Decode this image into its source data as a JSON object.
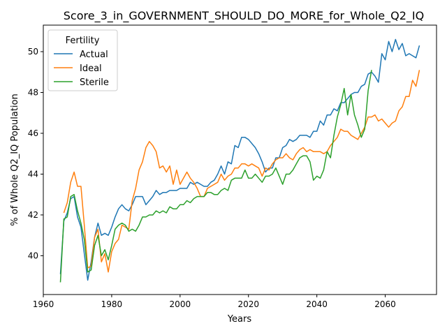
{
  "chart_data": {
    "type": "line",
    "title": "Score_3_in_GOVERNMENT_SHOULD_DO_MORE_for_Whole_Q2_IQ",
    "xlabel": "Years",
    "ylabel": "% of Whole Q2_IQ Population",
    "xlim": [
      1960,
      2075
    ],
    "ylim": [
      38.1,
      51.3
    ],
    "xticks": [
      1960,
      1980,
      2000,
      2020,
      2040,
      2060
    ],
    "yticks": [
      40,
      42,
      44,
      46,
      48,
      50
    ],
    "grid": false,
    "legend": {
      "title": "Fertility",
      "placement": "top-left"
    },
    "series": [
      {
        "name": "Actual",
        "color": "#1f77b4",
        "points": [
          [
            1965,
            39.1
          ],
          [
            1966,
            41.7
          ],
          [
            1967,
            42.1
          ],
          [
            1968,
            42.8
          ],
          [
            1969,
            42.9
          ],
          [
            1970,
            41.9
          ],
          [
            1971,
            41.4
          ],
          [
            1972,
            40.1
          ],
          [
            1973,
            38.8
          ],
          [
            1974,
            39.7
          ],
          [
            1975,
            40.9
          ],
          [
            1976,
            41.6
          ],
          [
            1977,
            41.0
          ],
          [
            1978,
            41.1
          ],
          [
            1979,
            41.0
          ],
          [
            1980,
            41.4
          ],
          [
            1981,
            41.9
          ],
          [
            1982,
            42.3
          ],
          [
            1983,
            42.5
          ],
          [
            1984,
            42.3
          ],
          [
            1985,
            42.2
          ],
          [
            1986,
            42.5
          ],
          [
            1987,
            42.9
          ],
          [
            1988,
            42.9
          ],
          [
            1989,
            42.9
          ],
          [
            1990,
            42.5
          ],
          [
            1991,
            42.7
          ],
          [
            1992,
            42.9
          ],
          [
            1993,
            43.2
          ],
          [
            1994,
            43.0
          ],
          [
            1995,
            43.1
          ],
          [
            1996,
            43.1
          ],
          [
            1997,
            43.2
          ],
          [
            1998,
            43.2
          ],
          [
            1999,
            43.2
          ],
          [
            2000,
            43.3
          ],
          [
            2001,
            43.3
          ],
          [
            2002,
            43.3
          ],
          [
            2003,
            43.6
          ],
          [
            2004,
            43.5
          ],
          [
            2005,
            43.6
          ],
          [
            2006,
            43.5
          ],
          [
            2007,
            43.4
          ],
          [
            2008,
            43.4
          ],
          [
            2009,
            43.6
          ],
          [
            2010,
            43.7
          ],
          [
            2011,
            44.0
          ],
          [
            2012,
            44.4
          ],
          [
            2013,
            44.0
          ],
          [
            2014,
            44.6
          ],
          [
            2015,
            44.5
          ],
          [
            2016,
            45.4
          ],
          [
            2017,
            45.3
          ],
          [
            2018,
            45.8
          ],
          [
            2019,
            45.8
          ],
          [
            2020,
            45.7
          ],
          [
            2021,
            45.5
          ],
          [
            2022,
            45.3
          ],
          [
            2023,
            45.0
          ],
          [
            2024,
            44.6
          ],
          [
            2025,
            44.1
          ],
          [
            2026,
            44.3
          ],
          [
            2027,
            44.3
          ],
          [
            2028,
            44.8
          ],
          [
            2029,
            44.8
          ],
          [
            2030,
            45.3
          ],
          [
            2031,
            45.4
          ],
          [
            2032,
            45.7
          ],
          [
            2033,
            45.6
          ],
          [
            2034,
            45.7
          ],
          [
            2035,
            45.9
          ],
          [
            2036,
            45.9
          ],
          [
            2037,
            45.9
          ],
          [
            2038,
            45.8
          ],
          [
            2039,
            46.1
          ],
          [
            2040,
            46.1
          ],
          [
            2041,
            46.6
          ],
          [
            2042,
            46.4
          ],
          [
            2043,
            46.9
          ],
          [
            2044,
            46.9
          ],
          [
            2045,
            47.2
          ],
          [
            2046,
            47.1
          ],
          [
            2047,
            47.5
          ],
          [
            2048,
            47.5
          ],
          [
            2049,
            47.7
          ],
          [
            2050,
            47.9
          ],
          [
            2051,
            48.0
          ],
          [
            2052,
            48.0
          ],
          [
            2053,
            48.3
          ],
          [
            2054,
            48.4
          ],
          [
            2055,
            48.9
          ],
          [
            2056,
            49.0
          ],
          [
            2057,
            48.8
          ],
          [
            2058,
            48.5
          ],
          [
            2059,
            49.9
          ],
          [
            2060,
            49.6
          ],
          [
            2061,
            50.5
          ],
          [
            2062,
            50.0
          ],
          [
            2063,
            50.6
          ],
          [
            2064,
            50.1
          ],
          [
            2065,
            50.4
          ],
          [
            2066,
            49.8
          ],
          [
            2067,
            49.9
          ],
          [
            2068,
            49.8
          ],
          [
            2069,
            49.7
          ],
          [
            2070,
            50.3
          ]
        ]
      },
      {
        "name": "Ideal",
        "color": "#ff7f0e",
        "points": [
          [
            1966,
            42.1
          ],
          [
            1967,
            42.6
          ],
          [
            1968,
            43.6
          ],
          [
            1969,
            44.1
          ],
          [
            1970,
            43.4
          ],
          [
            1971,
            43.4
          ],
          [
            1972,
            41.5
          ],
          [
            1973,
            39.4
          ],
          [
            1974,
            39.5
          ],
          [
            1975,
            40.9
          ],
          [
            1976,
            41.3
          ],
          [
            1977,
            39.7
          ],
          [
            1978,
            40.1
          ],
          [
            1979,
            39.2
          ],
          [
            1980,
            40.2
          ],
          [
            1981,
            40.6
          ],
          [
            1982,
            40.8
          ],
          [
            1983,
            41.5
          ],
          [
            1984,
            41.4
          ],
          [
            1985,
            41.3
          ],
          [
            1986,
            42.7
          ],
          [
            1987,
            43.3
          ],
          [
            1988,
            44.2
          ],
          [
            1989,
            44.6
          ],
          [
            1990,
            45.3
          ],
          [
            1991,
            45.6
          ],
          [
            1992,
            45.4
          ],
          [
            1993,
            45.1
          ],
          [
            1994,
            44.3
          ],
          [
            1995,
            44.4
          ],
          [
            1996,
            44.1
          ],
          [
            1997,
            44.4
          ],
          [
            1998,
            43.5
          ],
          [
            1999,
            44.2
          ],
          [
            2000,
            43.5
          ],
          [
            2001,
            43.8
          ],
          [
            2002,
            44.1
          ],
          [
            2003,
            43.8
          ],
          [
            2004,
            43.6
          ],
          [
            2005,
            43.3
          ],
          [
            2006,
            42.9
          ],
          [
            2007,
            42.9
          ],
          [
            2008,
            43.3
          ],
          [
            2009,
            43.4
          ],
          [
            2010,
            43.5
          ],
          [
            2011,
            43.6
          ],
          [
            2012,
            44.0
          ],
          [
            2013,
            43.7
          ],
          [
            2014,
            43.9
          ],
          [
            2015,
            44.0
          ],
          [
            2016,
            44.3
          ],
          [
            2017,
            44.3
          ],
          [
            2018,
            44.5
          ],
          [
            2019,
            44.5
          ],
          [
            2020,
            44.4
          ],
          [
            2021,
            44.5
          ],
          [
            2022,
            44.4
          ],
          [
            2023,
            44.3
          ],
          [
            2024,
            43.9
          ],
          [
            2025,
            44.3
          ],
          [
            2026,
            44.2
          ],
          [
            2027,
            44.5
          ],
          [
            2028,
            44.7
          ],
          [
            2029,
            44.8
          ],
          [
            2030,
            44.8
          ],
          [
            2031,
            45.0
          ],
          [
            2032,
            44.8
          ],
          [
            2033,
            44.7
          ],
          [
            2034,
            45.0
          ],
          [
            2035,
            45.2
          ],
          [
            2036,
            45.3
          ],
          [
            2037,
            45.1
          ],
          [
            2038,
            45.2
          ],
          [
            2039,
            45.1
          ],
          [
            2040,
            45.1
          ],
          [
            2041,
            45.1
          ],
          [
            2042,
            45.0
          ],
          [
            2043,
            45.1
          ],
          [
            2044,
            45.4
          ],
          [
            2045,
            45.6
          ],
          [
            2046,
            45.8
          ],
          [
            2047,
            46.2
          ],
          [
            2048,
            46.1
          ],
          [
            2049,
            46.1
          ],
          [
            2050,
            45.9
          ],
          [
            2051,
            45.8
          ],
          [
            2052,
            45.7
          ],
          [
            2053,
            46.0
          ],
          [
            2054,
            46.3
          ],
          [
            2055,
            46.8
          ],
          [
            2056,
            46.8
          ],
          [
            2057,
            46.9
          ],
          [
            2058,
            46.6
          ],
          [
            2059,
            46.7
          ],
          [
            2060,
            46.5
          ],
          [
            2061,
            46.3
          ],
          [
            2062,
            46.5
          ],
          [
            2063,
            46.6
          ],
          [
            2064,
            47.1
          ],
          [
            2065,
            47.3
          ],
          [
            2066,
            47.8
          ],
          [
            2067,
            47.8
          ],
          [
            2068,
            48.6
          ],
          [
            2069,
            48.3
          ],
          [
            2070,
            49.1
          ]
        ]
      },
      {
        "name": "Sterile",
        "color": "#2ca02c",
        "points": [
          [
            1965,
            38.7
          ],
          [
            1966,
            41.8
          ],
          [
            1967,
            41.9
          ],
          [
            1968,
            42.9
          ],
          [
            1969,
            43.0
          ],
          [
            1970,
            42.2
          ],
          [
            1971,
            41.6
          ],
          [
            1972,
            40.8
          ],
          [
            1973,
            39.2
          ],
          [
            1974,
            39.3
          ],
          [
            1975,
            40.5
          ],
          [
            1976,
            41.0
          ],
          [
            1977,
            40.0
          ],
          [
            1978,
            40.3
          ],
          [
            1979,
            39.8
          ],
          [
            1980,
            40.5
          ],
          [
            1981,
            41.3
          ],
          [
            1982,
            41.5
          ],
          [
            1983,
            41.6
          ],
          [
            1984,
            41.5
          ],
          [
            1985,
            41.2
          ],
          [
            1986,
            41.3
          ],
          [
            1987,
            41.2
          ],
          [
            1988,
            41.5
          ],
          [
            1989,
            41.9
          ],
          [
            1990,
            41.9
          ],
          [
            1991,
            42.0
          ],
          [
            1992,
            42.0
          ],
          [
            1993,
            42.2
          ],
          [
            1994,
            42.1
          ],
          [
            1995,
            42.2
          ],
          [
            1996,
            42.1
          ],
          [
            1997,
            42.4
          ],
          [
            1998,
            42.3
          ],
          [
            1999,
            42.3
          ],
          [
            2000,
            42.5
          ],
          [
            2001,
            42.5
          ],
          [
            2002,
            42.7
          ],
          [
            2003,
            42.6
          ],
          [
            2004,
            42.8
          ],
          [
            2005,
            42.9
          ],
          [
            2006,
            42.9
          ],
          [
            2007,
            42.9
          ],
          [
            2008,
            43.1
          ],
          [
            2009,
            43.1
          ],
          [
            2010,
            43.0
          ],
          [
            2011,
            43.0
          ],
          [
            2012,
            43.2
          ],
          [
            2013,
            43.3
          ],
          [
            2014,
            43.2
          ],
          [
            2015,
            43.7
          ],
          [
            2016,
            43.8
          ],
          [
            2017,
            43.8
          ],
          [
            2018,
            43.8
          ],
          [
            2019,
            44.2
          ],
          [
            2020,
            43.8
          ],
          [
            2021,
            43.8
          ],
          [
            2022,
            44.0
          ],
          [
            2023,
            43.8
          ],
          [
            2024,
            43.6
          ],
          [
            2025,
            43.9
          ],
          [
            2026,
            43.9
          ],
          [
            2027,
            44.0
          ],
          [
            2028,
            44.3
          ],
          [
            2029,
            43.9
          ],
          [
            2030,
            43.5
          ],
          [
            2031,
            44.0
          ],
          [
            2032,
            44.0
          ],
          [
            2033,
            44.2
          ],
          [
            2034,
            44.5
          ],
          [
            2035,
            44.8
          ],
          [
            2036,
            44.9
          ],
          [
            2037,
            44.9
          ],
          [
            2038,
            44.6
          ],
          [
            2039,
            43.7
          ],
          [
            2040,
            43.9
          ],
          [
            2041,
            43.8
          ],
          [
            2042,
            44.2
          ],
          [
            2043,
            45.1
          ],
          [
            2044,
            44.8
          ],
          [
            2045,
            45.9
          ],
          [
            2046,
            46.8
          ],
          [
            2047,
            47.4
          ],
          [
            2048,
            48.2
          ],
          [
            2049,
            46.9
          ],
          [
            2050,
            47.9
          ],
          [
            2051,
            46.9
          ],
          [
            2052,
            46.4
          ],
          [
            2053,
            45.8
          ],
          [
            2054,
            46.2
          ],
          [
            2055,
            48.1
          ],
          [
            2056,
            49.1
          ]
        ]
      }
    ]
  }
}
